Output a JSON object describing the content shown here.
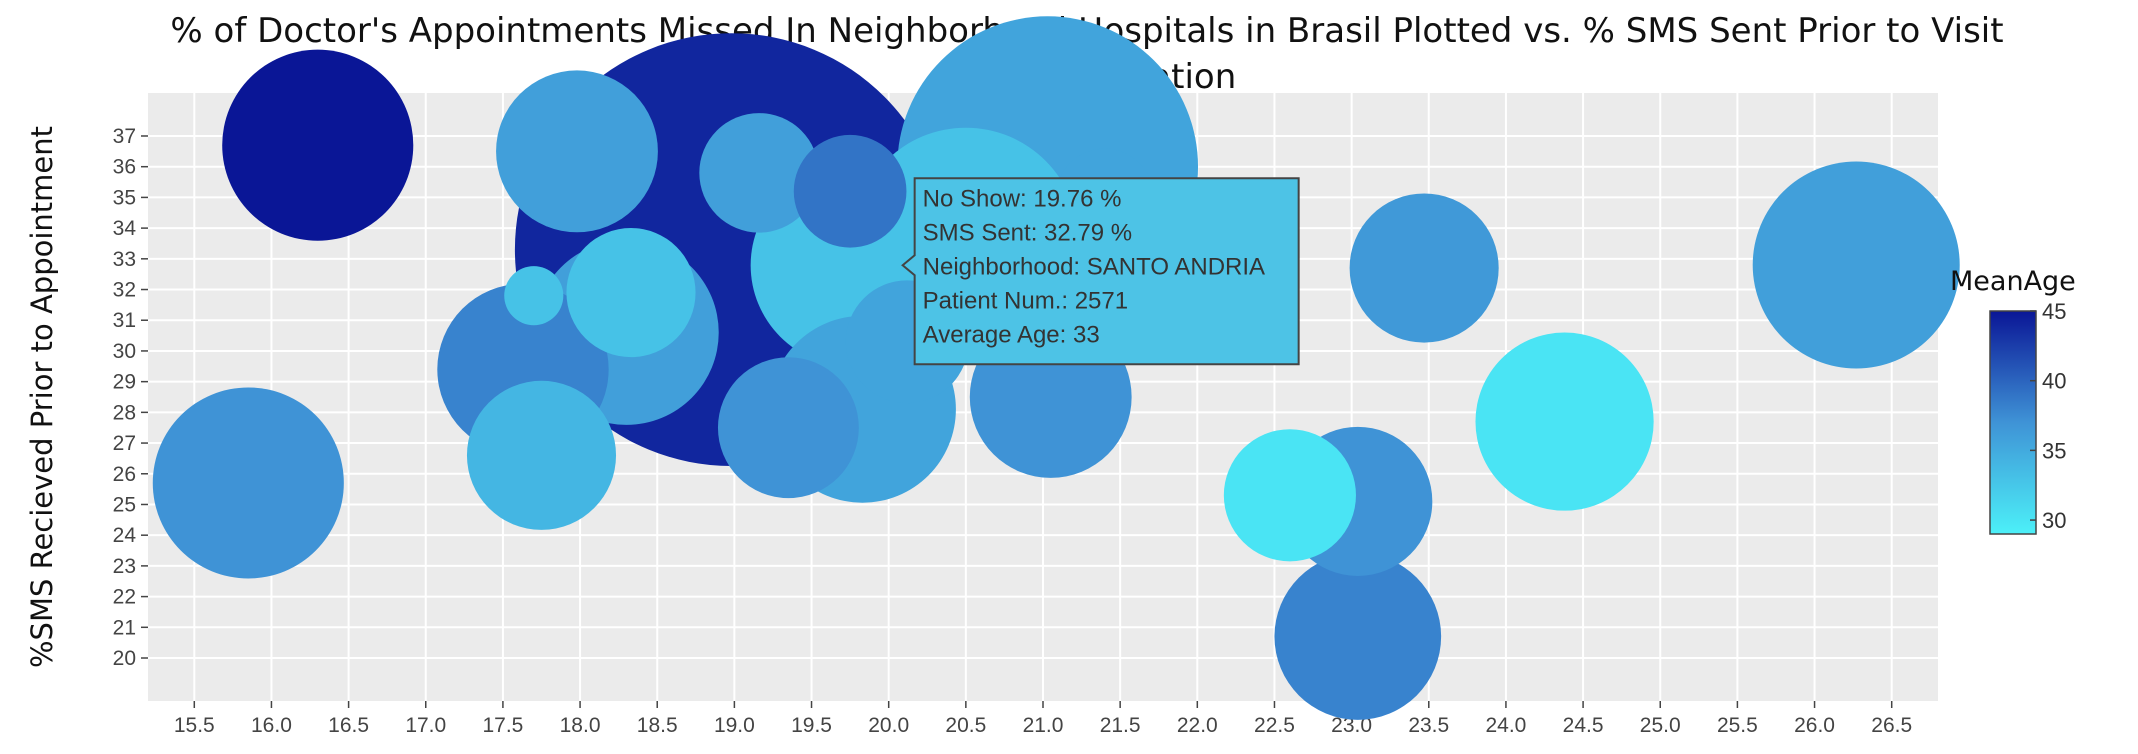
{
  "chart_data": {
    "type": "scatter",
    "title": "% of Doctor's Appointments Missed In Neighborhood Hospitals in Brasil Plotted vs. % SMS Sent Prior to Visit",
    "subtitle": "Size = Population",
    "xlabel": "",
    "ylabel": "%SMS Recieved Prior to Appointment",
    "xlim": [
      15.2,
      26.8
    ],
    "ylim": [
      18.6,
      38.4
    ],
    "x_ticks": [
      "15.5",
      "16.0",
      "16.5",
      "17.0",
      "17.5",
      "18.0",
      "18.5",
      "19.0",
      "19.5",
      "20.0",
      "20.5",
      "21.0",
      "21.5",
      "22.0",
      "22.5",
      "23.0",
      "23.5",
      "24.0",
      "24.5",
      "25.0",
      "25.5",
      "26.0",
      "26.5"
    ],
    "y_ticks": [
      "20",
      "21",
      "22",
      "23",
      "24",
      "25",
      "26",
      "27",
      "28",
      "29",
      "30",
      "31",
      "32",
      "33",
      "34",
      "35",
      "36",
      "37"
    ],
    "grid": true,
    "color_scale": {
      "title": "MeanAge",
      "min": 29,
      "max": 45,
      "ticks": [
        "45",
        "40",
        "35",
        "30"
      ],
      "tick_values": [
        45,
        40,
        35,
        30
      ],
      "low_color": "#4cf0f8",
      "mid_color": "#3f93d6",
      "high_color": "#0a1696"
    },
    "points": [
      {
        "x": 16.3,
        "y": 36.7,
        "size": 2300,
        "mean_age": 45
      },
      {
        "x": 15.85,
        "y": 25.7,
        "size": 2300,
        "mean_age": 37
      },
      {
        "x": 17.98,
        "y": 36.5,
        "size": 1650,
        "mean_age": 36
      },
      {
        "x": 17.63,
        "y": 29.4,
        "size": 1850,
        "mean_age": 38
      },
      {
        "x": 17.7,
        "y": 31.8,
        "size": 220,
        "mean_age": 33
      },
      {
        "x": 17.75,
        "y": 26.6,
        "size": 1400,
        "mean_age": 34
      },
      {
        "x": 18.3,
        "y": 30.6,
        "size": 2150,
        "mean_age": 36
      },
      {
        "x": 18.33,
        "y": 31.9,
        "size": 1050,
        "mean_age": 33
      },
      {
        "x": 18.98,
        "y": 33.3,
        "size": 11800,
        "mean_age": 44
      },
      {
        "x": 19.16,
        "y": 35.8,
        "size": 900,
        "mean_age": 36
      },
      {
        "x": 19.35,
        "y": 27.5,
        "size": 1250,
        "mean_age": 37
      },
      {
        "x": 19.75,
        "y": 35.2,
        "size": 800,
        "mean_age": 39
      },
      {
        "x": 19.76,
        "y": 32.79,
        "size": 2571,
        "mean_age": 33
      },
      {
        "x": 19.83,
        "y": 28.1,
        "size": 2200,
        "mean_age": 35.5
      },
      {
        "x": 20.12,
        "y": 30.3,
        "size": 950,
        "mean_age": 35.5
      },
      {
        "x": 20.5,
        "y": 33.6,
        "size": 3200,
        "mean_age": 33
      },
      {
        "x": 21.03,
        "y": 36.0,
        "size": 5700,
        "mean_age": 35.5
      },
      {
        "x": 21.05,
        "y": 28.5,
        "size": 1650,
        "mean_age": 37
      },
      {
        "x": 21.4,
        "y": 35.0,
        "size": 600,
        "mean_age": 35.5
      },
      {
        "x": 22.6,
        "y": 25.3,
        "size": 1100,
        "mean_age": 30
      },
      {
        "x": 23.04,
        "y": 25.1,
        "size": 1400,
        "mean_age": 37
      },
      {
        "x": 23.04,
        "y": 20.7,
        "size": 1750,
        "mean_age": 38
      },
      {
        "x": 23.47,
        "y": 32.7,
        "size": 1400,
        "mean_age": 36.5
      },
      {
        "x": 24.38,
        "y": 27.7,
        "size": 2000,
        "mean_age": 30
      },
      {
        "x": 26.27,
        "y": 32.8,
        "size": 2700,
        "mean_age": 36
      }
    ],
    "tooltip": {
      "lines": [
        "No Show:  19.76 %",
        "SMS Sent: 32.79 %",
        "Neighborhood: SANTO ANDRIA",
        "Patient Num.: 2571",
        "Average Age: 33"
      ],
      "x": 19.76,
      "y": 32.79,
      "color": "#4dc3e6"
    }
  }
}
